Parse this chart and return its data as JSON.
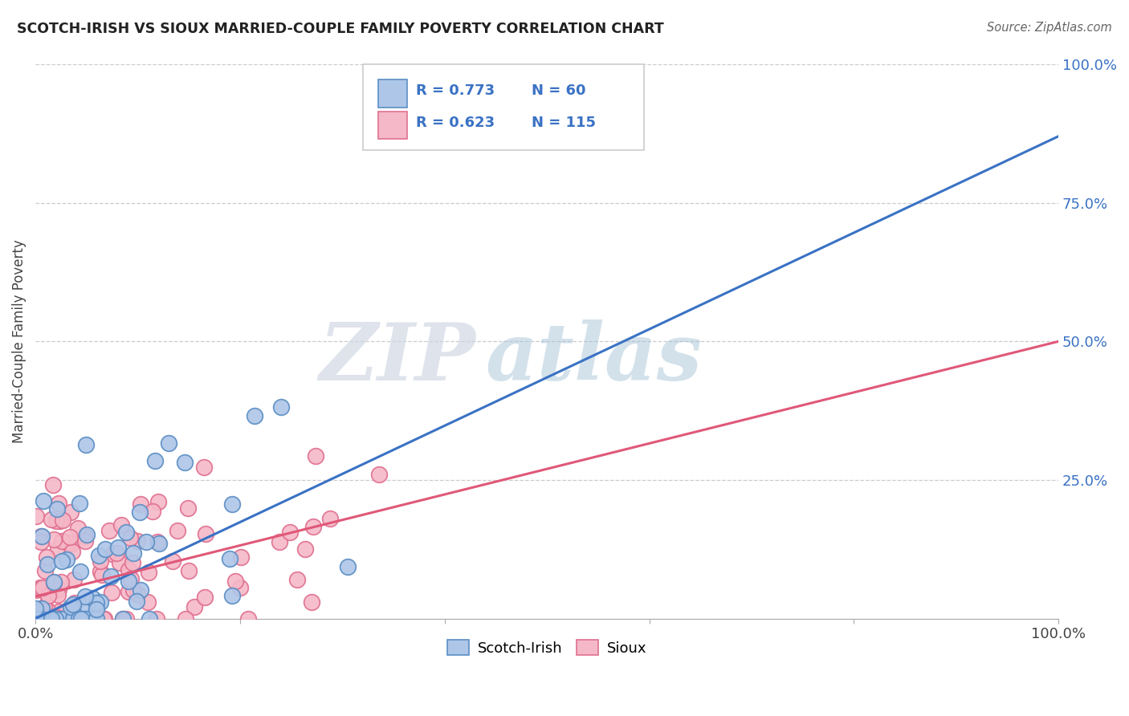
{
  "title": "SCOTCH-IRISH VS SIOUX MARRIED-COUPLE FAMILY POVERTY CORRELATION CHART",
  "source_text": "Source: ZipAtlas.com",
  "ylabel": "Married-Couple Family Poverty",
  "watermark_zip": "ZIP",
  "watermark_atlas": "atlas",
  "legend_bottom": [
    "Scotch-Irish",
    "Sioux"
  ],
  "blue_face_color": "#aec6e8",
  "pink_face_color": "#f5b8c8",
  "blue_edge_color": "#5b8ec4",
  "pink_edge_color": "#e07090",
  "blue_line_color": "#3a72c4",
  "pink_line_color": "#e05878",
  "R_blue": 0.773,
  "N_blue": 60,
  "R_pink": 0.623,
  "N_pink": 115,
  "legend_R_color": "#3a72c4",
  "legend_N_color": "#3a72c4",
  "ytick_color": "#3a72c4",
  "title_color": "#222222",
  "source_color": "#666666",
  "grid_color": "#cccccc",
  "blue_line_intercept": 0.0,
  "blue_line_slope": 0.87,
  "pink_line_intercept": 4.0,
  "pink_line_slope": 0.46
}
